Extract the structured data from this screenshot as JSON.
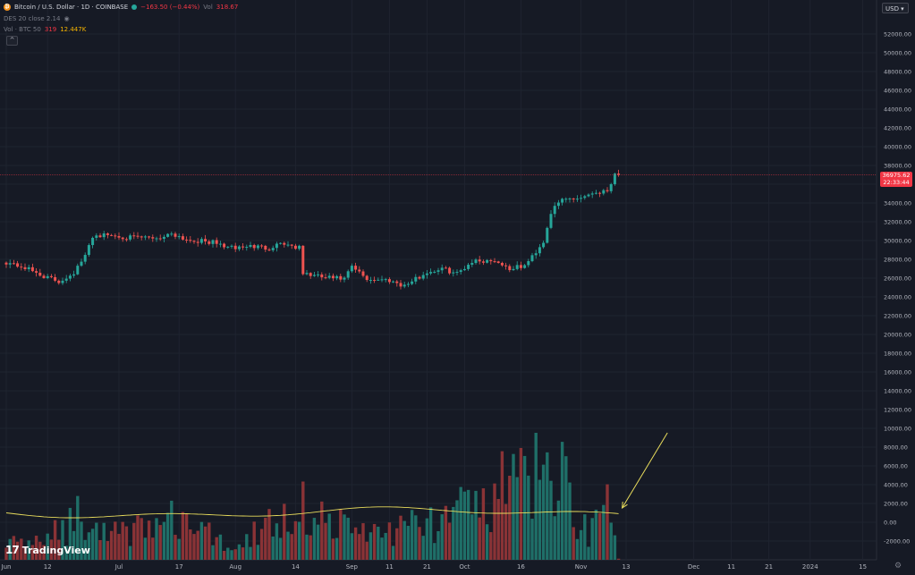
{
  "header": {
    "symbol_title": "Bitcoin / U.S. Dollar · 1D · COINBASE",
    "change": "−163.50 (−0.44%)",
    "vol_label": "Vol",
    "vol_value": "318.67",
    "ma_label": "DES 20 close 2.14",
    "vol_indicator_label": "Vol · BTC 50",
    "vol_indicator_val1": "319",
    "vol_indicator_val2": "12.447K",
    "collapse_glyph": "^",
    "eye_glyph": "◉"
  },
  "currency_button": "USD ▾",
  "last_price": {
    "value": "36975.62",
    "countdown": "22:33:44"
  },
  "logo": {
    "mark": "𝟭𝟳",
    "text": "TradingView"
  },
  "settings_glyph": "⚙",
  "colors": {
    "background": "#161a25",
    "up": "#26a69a",
    "down": "#ef5350",
    "vol_up": "#1f6f68",
    "vol_down": "#8a3336",
    "ma_line": "#e8dc5c",
    "arrow": "#e8dc5c",
    "grid": "#1f2430",
    "price_line": "#f23645"
  },
  "chart_data": [
    {
      "type": "candlestick",
      "title": "Bitcoin / U.S. Dollar · 1D · COINBASE",
      "price_axis": {
        "range": [
          -2400,
          54500
        ],
        "ticks": [
          "-2000.00",
          "0.00",
          "2000.00",
          "4000.00",
          "6000.00",
          "8000.00",
          "10000.00",
          "12000.00",
          "14000.00",
          "16000.00",
          "18000.00",
          "20000.00",
          "22000.00",
          "24000.00",
          "26000.00",
          "28000.00",
          "30000.00",
          "32000.00",
          "34000.00",
          "36000.00",
          "38000.00",
          "40000.00",
          "42000.00",
          "44000.00",
          "46000.00",
          "48000.00",
          "50000.00",
          "52000.00"
        ]
      },
      "time_axis": {
        "labels": [
          "Jun",
          "12",
          "Jul",
          "17",
          "Aug",
          "14",
          "Sep",
          "11",
          "21",
          "Oct",
          "16",
          "Nov",
          "13",
          "Dec",
          "11",
          "21",
          "2024",
          "15"
        ],
        "label_day_index": [
          0,
          11,
          30,
          46,
          61,
          77,
          92,
          102,
          112,
          122,
          137,
          153,
          165,
          183,
          193,
          203,
          214,
          228
        ]
      },
      "price_waypoints": [
        {
          "day": 0,
          "close": 27700
        },
        {
          "day": 5,
          "close": 27100
        },
        {
          "day": 10,
          "close": 26200
        },
        {
          "day": 14,
          "close": 25600
        },
        {
          "day": 18,
          "close": 26600
        },
        {
          "day": 21,
          "close": 28300
        },
        {
          "day": 23,
          "close": 30500
        },
        {
          "day": 27,
          "close": 30600
        },
        {
          "day": 33,
          "close": 30300
        },
        {
          "day": 41,
          "close": 30300
        },
        {
          "day": 44,
          "close": 30800
        },
        {
          "day": 48,
          "close": 30100
        },
        {
          "day": 55,
          "close": 29800
        },
        {
          "day": 60,
          "close": 29200
        },
        {
          "day": 65,
          "close": 29400
        },
        {
          "day": 70,
          "close": 29200
        },
        {
          "day": 73,
          "close": 29800
        },
        {
          "day": 78,
          "close": 29200
        },
        {
          "day": 79,
          "close": 26500
        },
        {
          "day": 84,
          "close": 26100
        },
        {
          "day": 90,
          "close": 25900
        },
        {
          "day": 92,
          "close": 27200
        },
        {
          "day": 96,
          "close": 25900
        },
        {
          "day": 102,
          "close": 25800
        },
        {
          "day": 106,
          "close": 25200
        },
        {
          "day": 112,
          "close": 26600
        },
        {
          "day": 116,
          "close": 27000
        },
        {
          "day": 120,
          "close": 26500
        },
        {
          "day": 124,
          "close": 27800
        },
        {
          "day": 130,
          "close": 27900
        },
        {
          "day": 134,
          "close": 27000
        },
        {
          "day": 138,
          "close": 27300
        },
        {
          "day": 140,
          "close": 28300
        },
        {
          "day": 143,
          "close": 29900
        },
        {
          "day": 145,
          "close": 33000
        },
        {
          "day": 148,
          "close": 34400
        },
        {
          "day": 153,
          "close": 34600
        },
        {
          "day": 156,
          "close": 35100
        },
        {
          "day": 160,
          "close": 35300
        },
        {
          "day": 162,
          "close": 37200
        },
        {
          "day": 163,
          "close": 37000
        }
      ],
      "volume_waypoints": [
        {
          "day": 0,
          "volume": 2300
        },
        {
          "day": 10,
          "volume": 2000
        },
        {
          "day": 20,
          "volume": 6000
        },
        {
          "day": 23,
          "volume": 3000
        },
        {
          "day": 46,
          "volume": 5000
        },
        {
          "day": 60,
          "volume": 1500
        },
        {
          "day": 78,
          "volume": 7000
        },
        {
          "day": 92,
          "volume": 3500
        },
        {
          "day": 106,
          "volume": 4000
        },
        {
          "day": 123,
          "volume": 6000
        },
        {
          "day": 137,
          "volume": 10000
        },
        {
          "day": 147,
          "volume": 11000
        },
        {
          "day": 155,
          "volume": 3500
        },
        {
          "day": 160,
          "volume": 7500
        },
        {
          "day": 163,
          "volume": 300
        }
      ],
      "volume_ma_approx": 1000,
      "current_price": 36975.62,
      "annotation": {
        "type": "arrow",
        "from": {
          "day": 176,
          "value": 9500
        },
        "to": {
          "day": 163,
          "value": 1300
        }
      }
    }
  ]
}
